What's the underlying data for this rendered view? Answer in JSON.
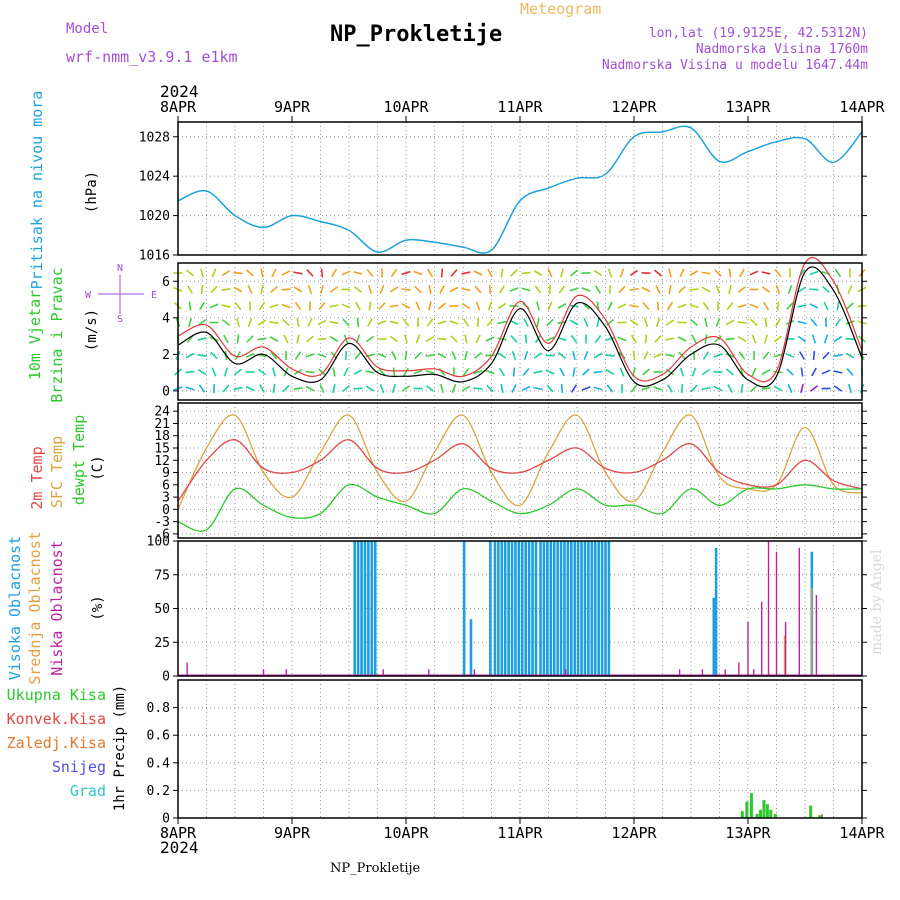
{
  "header": {
    "model_label": "Model",
    "model_name": "wrf-nmm_v3.9.1 e1km",
    "station": "NP_Prokletije",
    "meteogram_label": "Meteogram",
    "lonlat": "lon,lat (19.9125E, 42.5312N)",
    "elevation": "Nadmorska Visina 1760m",
    "model_elevation": "Nadmorska Visina u modelu 1647.44m",
    "year": "2024"
  },
  "footer": {
    "station": "NP_Prokletije",
    "credit": "made by Angel"
  },
  "colors": {
    "pressure": "#1ea2dc",
    "wind_speed": "#000000",
    "wind_gust": "#e03a3a",
    "t2m": "#e04848",
    "sfc": "#d9a640",
    "dewpt": "#2cc82c",
    "cloud_high": "#1e9fe0",
    "cloud_mid": "#e0a040",
    "cloud_low": "#c020a0",
    "total_precip": "#2cc82c",
    "conv_precip": "#e04848",
    "frz_precip": "#e07a30",
    "snow": "#5050e0",
    "grad": "#2cc8c8",
    "wind_arrows": "rainbow"
  },
  "chart_data": [
    {
      "type": "line",
      "panel": "pressure",
      "ylabel_main": "Pritisak na nivou mora",
      "ylabel_unit": "(hPa)",
      "x_ticks": [
        "8APR",
        "9APR",
        "10APR",
        "11APR",
        "12APR",
        "13APR",
        "14APR"
      ],
      "ylim": [
        1016,
        1029.5
      ],
      "y_ticks": [
        1016,
        1020,
        1024,
        1028
      ],
      "grid": true,
      "x": [
        0,
        0.25,
        0.5,
        0.75,
        1.0,
        1.25,
        1.5,
        1.75,
        2.0,
        2.25,
        2.5,
        2.75,
        3.0,
        3.25,
        3.5,
        3.75,
        4.0,
        4.25,
        4.5,
        4.75,
        5.0,
        5.25,
        5.5,
        5.75,
        6.0
      ],
      "series": [
        {
          "values": [
            1021.5,
            1022.5,
            1020.0,
            1018.8,
            1020.0,
            1019.4,
            1018.5,
            1016.3,
            1017.5,
            1017.3,
            1016.8,
            1016.5,
            1021.5,
            1022.8,
            1023.8,
            1024.2,
            1028.0,
            1028.5,
            1028.9,
            1025.5,
            1026.5,
            1027.5,
            1027.8,
            1025.4,
            1028.5
          ]
        }
      ]
    },
    {
      "type": "line",
      "panel": "wind",
      "ylabel_main": "10m Vjetar",
      "ylabel_sub": "Brzina i Pravac",
      "ylabel_unit": "(m/s)",
      "compass": [
        "N",
        "S",
        "W",
        "E"
      ],
      "ylim": [
        -0.5,
        7.0
      ],
      "y_ticks": [
        0,
        2,
        4,
        6
      ],
      "grid": true,
      "x": [
        0,
        0.25,
        0.5,
        0.75,
        1.0,
        1.25,
        1.5,
        1.75,
        2.0,
        2.25,
        2.5,
        2.75,
        3.0,
        3.25,
        3.5,
        3.75,
        4.0,
        4.25,
        4.5,
        4.75,
        5.0,
        5.25,
        5.5,
        5.75,
        6.0
      ],
      "series": [
        {
          "values": [
            2.5,
            3.2,
            1.5,
            2.0,
            0.8,
            0.6,
            2.6,
            1.0,
            0.8,
            0.9,
            0.5,
            1.5,
            4.5,
            2.2,
            4.8,
            3.5,
            0.5,
            0.6,
            2.0,
            2.5,
            0.6,
            0.8,
            6.5,
            5.5,
            1.8
          ]
        },
        {
          "values": [
            3.0,
            3.6,
            1.9,
            2.4,
            1.2,
            0.9,
            2.9,
            1.3,
            1.1,
            1.2,
            0.8,
            1.9,
            4.9,
            2.6,
            5.2,
            3.9,
            0.8,
            0.9,
            2.4,
            2.9,
            0.9,
            1.1,
            7.0,
            6.0,
            2.2
          ]
        }
      ]
    },
    {
      "type": "line",
      "panel": "temperature",
      "ylabel_t2m": "2m Temp",
      "ylabel_sfc": "SFC Temp",
      "ylabel_dew": "dewpt Temp",
      "ylabel_unit": "(C)",
      "ylim": [
        -7,
        26
      ],
      "y_ticks": [
        -6,
        -3,
        0,
        3,
        6,
        9,
        12,
        15,
        18,
        21,
        24
      ],
      "grid": true,
      "x": [
        0,
        0.25,
        0.5,
        0.75,
        1.0,
        1.25,
        1.5,
        1.75,
        2.0,
        2.25,
        2.5,
        2.75,
        3.0,
        3.25,
        3.5,
        3.75,
        4.0,
        4.25,
        4.5,
        4.75,
        5.0,
        5.25,
        5.5,
        5.75,
        6.0
      ],
      "series": [
        {
          "values": [
            2,
            12,
            17,
            10,
            9,
            12,
            17,
            10,
            9,
            12,
            16,
            10,
            9,
            12,
            15,
            10,
            9,
            12,
            16,
            9,
            6,
            6,
            12,
            7,
            5
          ]
        },
        {
          "values": [
            0,
            15,
            23,
            9,
            3,
            14,
            23,
            9,
            2,
            14,
            23,
            9,
            1,
            14,
            23,
            9,
            2,
            14,
            23,
            8,
            5,
            6,
            20,
            6,
            4
          ]
        },
        {
          "values": [
            -3,
            -5,
            5,
            1,
            -2,
            -1,
            6,
            3,
            1,
            -1,
            5,
            2,
            -1,
            1,
            5,
            1,
            1,
            -1,
            5,
            1,
            5,
            5,
            6,
            5,
            5
          ]
        }
      ]
    },
    {
      "type": "bar",
      "panel": "cloud",
      "ylabel_high": "Visoka Oblacnost",
      "ylabel_mid": "Srednja Oblacnost",
      "ylabel_low": "Niska Oblacnost",
      "ylabel_unit": "(%)",
      "ylim": [
        0,
        100
      ],
      "y_ticks": [
        0,
        25,
        50,
        75,
        100
      ],
      "grid": true,
      "series": [
        {
          "name": "high",
          "x": [
            1.55,
            1.58,
            1.61,
            1.64,
            1.67,
            1.7,
            1.73,
            2.51,
            2.57,
            2.74,
            2.78,
            2.81,
            2.84,
            2.87,
            2.9,
            2.93,
            2.96,
            2.99,
            3.02,
            3.05,
            3.08,
            3.11,
            3.14,
            3.18,
            3.21,
            3.24,
            3.27,
            3.3,
            3.33,
            3.36,
            3.39,
            3.42,
            3.45,
            3.48,
            3.51,
            3.54,
            3.57,
            3.6,
            3.63,
            3.66,
            3.69,
            3.72,
            3.75,
            3.78,
            4.7,
            4.72,
            5.56
          ],
          "values": [
            100,
            100,
            100,
            100,
            100,
            100,
            100,
            100,
            42,
            100,
            100,
            100,
            100,
            100,
            100,
            100,
            100,
            100,
            100,
            100,
            100,
            100,
            100,
            100,
            100,
            100,
            100,
            100,
            100,
            100,
            100,
            100,
            100,
            100,
            100,
            100,
            100,
            100,
            100,
            100,
            100,
            100,
            100,
            100,
            58,
            95,
            92
          ]
        },
        {
          "name": "mid",
          "x": [
            5.32,
            5.56
          ],
          "values": [
            30,
            65
          ]
        },
        {
          "name": "low",
          "x": [
            0.08,
            0.75,
            0.95,
            1.8,
            2.2,
            2.6,
            3.4,
            4.4,
            4.6,
            4.8,
            4.92,
            5.0,
            5.05,
            5.12,
            5.18,
            5.25,
            5.33,
            5.45,
            5.6
          ],
          "values": [
            10,
            5,
            5,
            5,
            5,
            5,
            5,
            5,
            5,
            5,
            10,
            40,
            5,
            55,
            100,
            92,
            40,
            95,
            60
          ]
        }
      ]
    },
    {
      "type": "bar",
      "panel": "precip",
      "ylabel_unit": "1hr Precip (mm)",
      "legend": [
        "Ukupna Kisa",
        "Konvek.Kisa",
        "Zaledj.Kisa",
        "Snijeg",
        "Grad"
      ],
      "ylim": [
        0,
        1.0
      ],
      "y_ticks": [
        0,
        0.2,
        0.4,
        0.6,
        0.8
      ],
      "grid": true,
      "series": [
        {
          "name": "total",
          "x": [
            4.95,
            4.99,
            5.03,
            5.08,
            5.11,
            5.14,
            5.17,
            5.2,
            5.24,
            5.55,
            5.63
          ],
          "values": [
            0.05,
            0.12,
            0.18,
            0.03,
            0.06,
            0.13,
            0.1,
            0.06,
            0.03,
            0.09,
            0.02
          ]
        },
        {
          "name": "conv",
          "x": [
            5.65
          ],
          "values": [
            0.03
          ]
        }
      ]
    }
  ]
}
